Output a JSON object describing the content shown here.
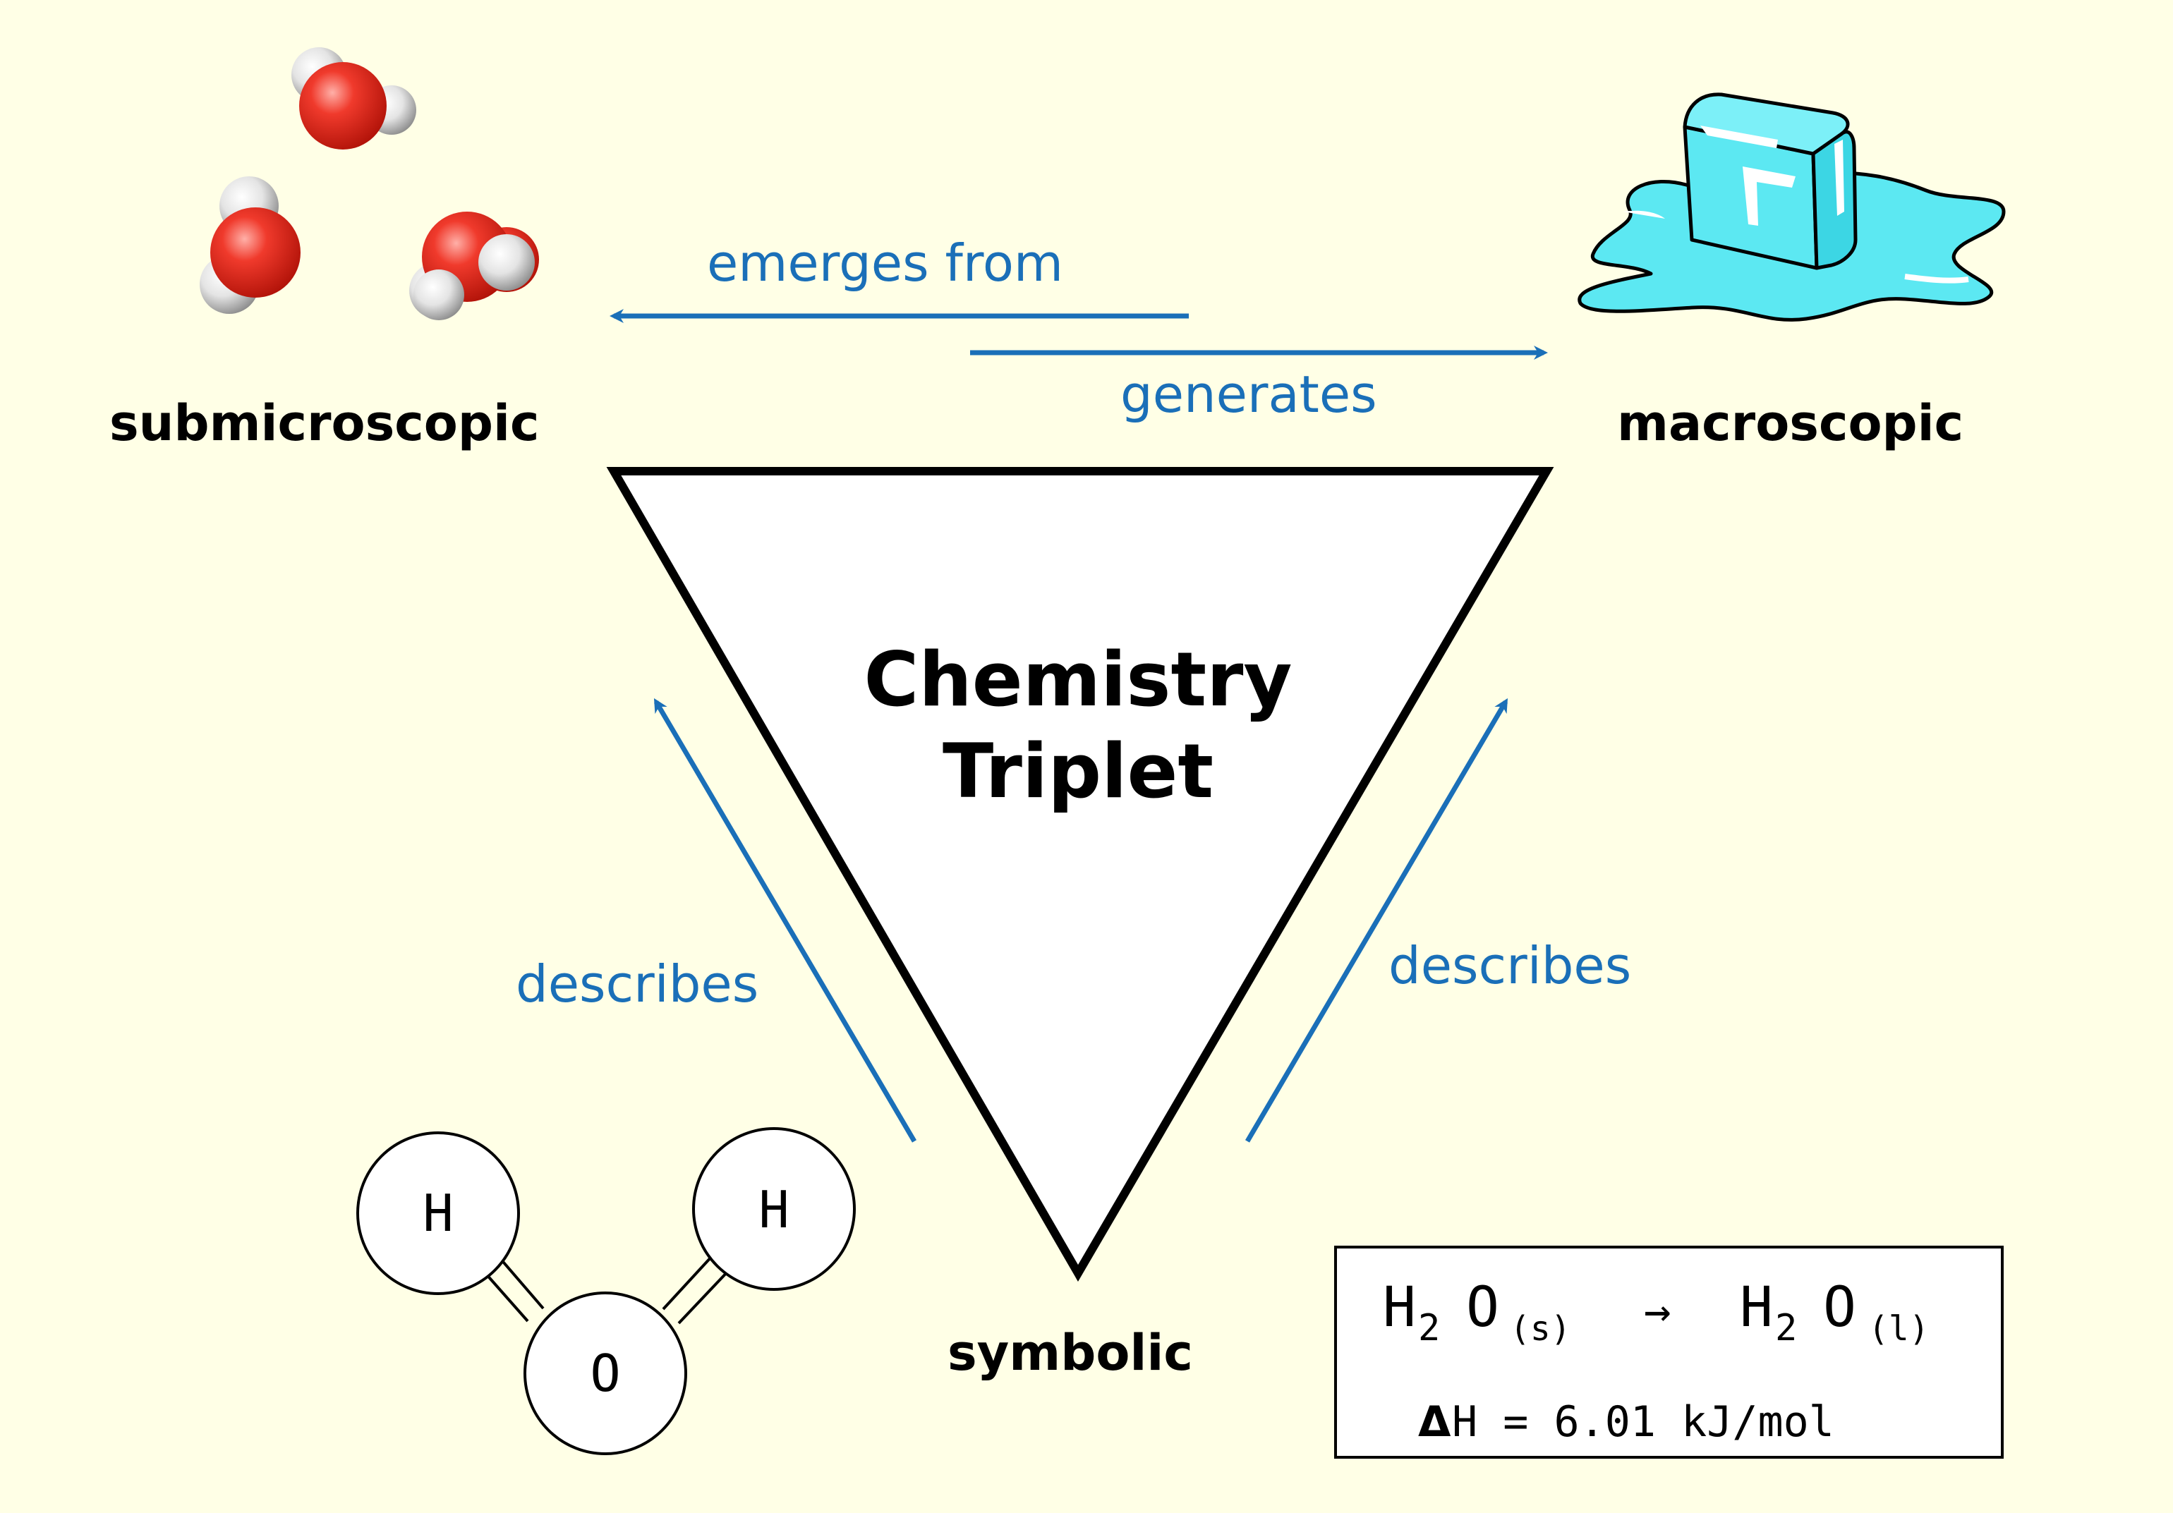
{
  "title": {
    "line1": "Chemistry",
    "line2": "Triplet"
  },
  "corners": {
    "submicroscopic": "submicroscopic",
    "macroscopic": "macroscopic",
    "symbolic": "symbolic"
  },
  "arrows": {
    "emerges_from": "emerges from",
    "generates": "generates",
    "describes_left": "describes",
    "describes_right": "describes"
  },
  "molecule": {
    "h1": "H",
    "h2": "H",
    "o": "O"
  },
  "equation": {
    "reactant": "H",
    "reactant_sub": "2",
    "reactant_o": "O",
    "reactant_state": "(s)",
    "arrow": "→",
    "product": "H",
    "product_sub": "2",
    "product_o": "O",
    "product_state": "(l)",
    "delta_symbol": "Δ",
    "enthalpy": "H = 6.01 kJ/mol"
  },
  "colors": {
    "background": "#ffffe6",
    "arrow_blue": "#1a6fb8",
    "ice": "#5ce8f2",
    "oxygen": "#e8251a",
    "hydrogen": "#e6e6e6"
  },
  "icons": {
    "water_molecules": "water-molecules-icon",
    "ice_cube": "ice-cube-icon"
  }
}
